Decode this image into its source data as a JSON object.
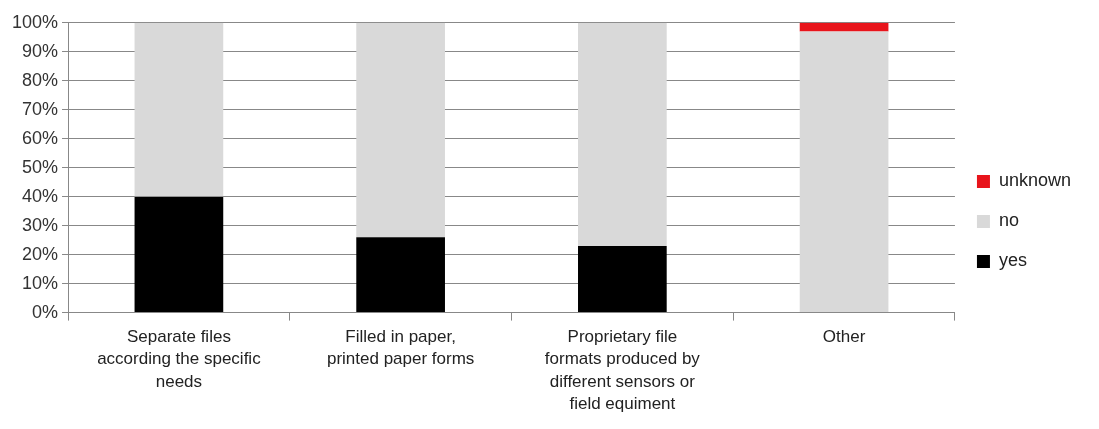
{
  "chart_data": {
    "type": "bar",
    "stacked": true,
    "categories": [
      "Separate files according the specific needs",
      "Filled in paper, printed paper forms",
      "Proprietary file formats produced by different sensors or field equiment",
      "Other"
    ],
    "series": [
      {
        "name": "yes",
        "color": "#000000",
        "values": [
          40,
          26,
          23,
          0
        ]
      },
      {
        "name": "no",
        "color": "#d9d9d9",
        "values": [
          60,
          74,
          77,
          97
        ]
      },
      {
        "name": "unknown",
        "color": "#e8141b",
        "values": [
          0,
          0,
          0,
          3
        ]
      }
    ],
    "ylim": [
      0,
      100
    ],
    "yticks": [
      {
        "value": 0,
        "label": "0%"
      },
      {
        "value": 10,
        "label": "10%"
      },
      {
        "value": 20,
        "label": "20%"
      },
      {
        "value": 30,
        "label": "30%"
      },
      {
        "value": 40,
        "label": "40%"
      },
      {
        "value": 50,
        "label": "50%"
      },
      {
        "value": 60,
        "label": "60%"
      },
      {
        "value": 70,
        "label": "70%"
      },
      {
        "value": 80,
        "label": "80%"
      },
      {
        "value": 90,
        "label": "90%"
      },
      {
        "value": 100,
        "label": "100%"
      }
    ],
    "grid": "y",
    "legend": "right"
  }
}
